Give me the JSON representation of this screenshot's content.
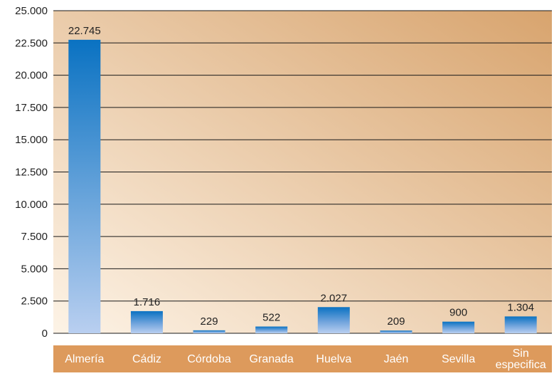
{
  "colors": {
    "plot_bg_light": "#fdf3e6",
    "plot_bg_dark": "#d8a46e",
    "bar_top": "#0a72c2",
    "bar_bottom": "#b9cff0",
    "category_band": "#dd9a5c",
    "category_text": "#ffffff",
    "gridline": "#1a1a1a"
  },
  "chart_data": {
    "type": "bar",
    "title": "",
    "xlabel": "",
    "ylabel": "",
    "ylim": [
      0,
      25000
    ],
    "yticks": [
      0,
      2500,
      5000,
      7500,
      10000,
      12500,
      15000,
      17500,
      20000,
      22500,
      25000
    ],
    "ytick_labels": [
      "0",
      "2.500",
      "5.000",
      "7.500",
      "10.000",
      "12.500",
      "15.000",
      "17.500",
      "20.000",
      "22.500",
      "25.000"
    ],
    "grid": true,
    "categories": [
      [
        "Almería"
      ],
      [
        "Cádiz"
      ],
      [
        "Córdoba"
      ],
      [
        "Granada"
      ],
      [
        "Huelva"
      ],
      [
        "Jaén"
      ],
      [
        "Sevilla"
      ],
      [
        "Sin",
        "especifica"
      ]
    ],
    "values": [
      22745,
      1716,
      229,
      522,
      2027,
      209,
      900,
      1304
    ],
    "value_labels": [
      "22.745",
      "1.716",
      "229",
      "522",
      "2.027",
      "209",
      "900",
      "1.304"
    ]
  }
}
